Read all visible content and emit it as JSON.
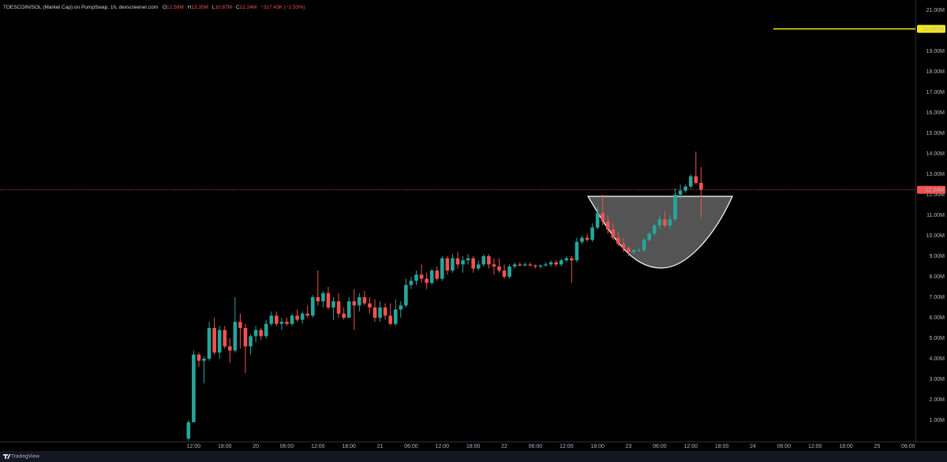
{
  "chart_data": {
    "type": "candlestick",
    "title": "TOESCOIN/SOL (Market Cap) on PumpSwap, 1h, dexscreener.com",
    "ohlc_legend": [
      {
        "key": "O",
        "value": "12.58M"
      },
      {
        "key": "H",
        "value": "13.35M"
      },
      {
        "key": "L",
        "value": "10.87M"
      },
      {
        "key": "C",
        "value": "12.24M"
      }
    ],
    "change": "−317.43K (−2.53%)",
    "watermark": "TradingView",
    "up_color": "#26a69a",
    "down_color": "#ef5350",
    "x": [
      11,
      12,
      13,
      14,
      15,
      16,
      17,
      18,
      19,
      20,
      21,
      22,
      23,
      24,
      25,
      26,
      27,
      28,
      29,
      30,
      31,
      32,
      33,
      34,
      35,
      36,
      37,
      38,
      39,
      40,
      41,
      42,
      43,
      44,
      45,
      46,
      47,
      48,
      49,
      50,
      51,
      52,
      53,
      54,
      55,
      56,
      57,
      58,
      59,
      60,
      61,
      62,
      63,
      64,
      65,
      66,
      67,
      68,
      69,
      70,
      71,
      72,
      73,
      74,
      75,
      76,
      77,
      78,
      79,
      80,
      81,
      82,
      83,
      84,
      85,
      86,
      87,
      88,
      89,
      90,
      91,
      92,
      93,
      94,
      95,
      96,
      97,
      98,
      99,
      100,
      101,
      102,
      103,
      104,
      105,
      106,
      107,
      108,
      109,
      110
    ],
    "open": [
      0.1,
      0.9,
      4.2,
      3.9,
      4.0,
      5.5,
      4.3,
      5.4,
      4.6,
      4.4,
      5.8,
      5.5,
      4.6,
      5.1,
      5.4,
      5.1,
      5.7,
      6.1,
      5.7,
      5.8,
      5.7,
      6.1,
      5.9,
      6.2,
      6.1,
      7.0,
      6.8,
      7.2,
      6.5,
      6.8,
      6.2,
      6.0,
      6.8,
      6.6,
      7.0,
      6.7,
      6.5,
      6.0,
      6.5,
      6.1,
      5.7,
      6.4,
      6.6,
      7.6,
      7.8,
      8.1,
      7.9,
      7.7,
      8.3,
      7.9,
      8.9,
      8.3,
      8.9,
      8.6,
      8.8,
      8.9,
      8.4,
      8.6,
      9.0,
      8.6,
      8.5,
      8.3,
      8.0,
      8.5,
      8.6,
      8.55,
      8.6,
      8.55,
      8.5,
      8.55,
      8.6,
      8.7,
      8.6,
      8.8,
      8.9,
      8.8,
      9.7,
      9.9,
      9.8,
      10.4,
      11.1,
      10.7,
      10.3,
      9.9,
      9.6,
      9.4,
      9.2,
      9.3,
      9.3,
      9.8,
      10.1,
      10.5,
      10.8,
      10.5,
      10.8,
      12.0,
      12.2,
      12.4,
      12.9,
      12.58
    ],
    "high": [
      1.0,
      4.4,
      4.3,
      4.1,
      5.8,
      6.0,
      5.6,
      5.6,
      5.0,
      7.0,
      6.2,
      5.7,
      5.2,
      5.6,
      5.5,
      5.9,
      6.3,
      6.3,
      6.0,
      6.0,
      6.2,
      6.4,
      6.3,
      6.6,
      7.1,
      8.3,
      7.3,
      7.5,
      7.0,
      7.2,
      6.5,
      7.0,
      7.4,
      7.2,
      7.3,
      7.0,
      6.9,
      6.8,
      6.7,
      6.7,
      6.9,
      6.8,
      7.9,
      8.0,
      8.3,
      8.6,
      8.2,
      8.4,
      8.5,
      9.0,
      9.0,
      9.1,
      9.2,
      9.0,
      9.1,
      9.0,
      8.8,
      9.1,
      9.1,
      8.9,
      8.9,
      8.6,
      8.6,
      8.7,
      8.7,
      8.7,
      8.7,
      8.6,
      8.6,
      8.7,
      8.8,
      8.8,
      8.9,
      9.0,
      9.0,
      9.9,
      10.0,
      10.1,
      10.6,
      11.4,
      12.0,
      11.0,
      10.6,
      10.2,
      9.9,
      9.5,
      9.35,
      9.4,
      9.9,
      10.2,
      10.6,
      11.0,
      11.2,
      11.0,
      12.3,
      12.5,
      12.5,
      13.0,
      14.1,
      13.35
    ],
    "low": [
      0.0,
      0.9,
      3.6,
      2.8,
      3.9,
      4.2,
      4.0,
      4.5,
      3.8,
      4.3,
      4.5,
      3.3,
      4.2,
      4.8,
      4.9,
      5.0,
      5.6,
      5.6,
      5.4,
      5.6,
      5.6,
      5.8,
      5.7,
      6.0,
      6.0,
      6.6,
      6.5,
      6.4,
      5.9,
      6.0,
      5.9,
      6.0,
      5.4,
      6.3,
      6.6,
      6.2,
      5.8,
      5.8,
      5.9,
      5.6,
      5.6,
      6.0,
      6.5,
      7.4,
      7.6,
      7.7,
      7.4,
      7.6,
      7.8,
      7.8,
      8.1,
      8.2,
      8.4,
      8.2,
      8.6,
      8.2,
      8.3,
      8.5,
      8.4,
      8.1,
      8.2,
      7.9,
      7.9,
      8.4,
      8.5,
      8.5,
      8.5,
      8.4,
      8.4,
      8.5,
      8.5,
      8.5,
      8.5,
      8.7,
      7.7,
      8.7,
      9.6,
      9.7,
      9.7,
      10.3,
      10.5,
      10.1,
      9.8,
      9.5,
      9.2,
      9.0,
      9.1,
      9.2,
      9.2,
      9.7,
      10.0,
      10.3,
      10.4,
      10.3,
      10.7,
      11.8,
      12.1,
      12.3,
      12.5,
      10.87
    ],
    "close": [
      0.9,
      4.2,
      3.9,
      4.0,
      5.5,
      4.3,
      5.4,
      4.6,
      4.4,
      5.8,
      5.5,
      4.6,
      5.1,
      5.4,
      5.1,
      5.7,
      6.1,
      5.7,
      5.8,
      5.7,
      6.1,
      5.9,
      6.2,
      6.1,
      7.0,
      6.8,
      7.2,
      6.5,
      6.8,
      6.2,
      6.0,
      6.8,
      6.6,
      7.0,
      6.7,
      6.5,
      6.0,
      6.5,
      6.1,
      5.7,
      6.4,
      6.6,
      7.6,
      7.8,
      8.1,
      7.9,
      7.7,
      8.3,
      7.9,
      8.9,
      8.3,
      8.9,
      8.6,
      8.8,
      8.9,
      8.4,
      8.6,
      9.0,
      8.6,
      8.5,
      8.3,
      8.0,
      8.5,
      8.6,
      8.55,
      8.6,
      8.55,
      8.5,
      8.55,
      8.6,
      8.7,
      8.6,
      8.8,
      8.9,
      8.8,
      9.7,
      9.9,
      9.8,
      10.4,
      11.1,
      10.7,
      10.3,
      9.9,
      9.6,
      9.4,
      9.2,
      9.3,
      9.3,
      9.8,
      10.1,
      10.5,
      10.8,
      10.5,
      10.8,
      12.0,
      12.2,
      12.4,
      12.9,
      12.58,
      12.24
    ],
    "price_lines": [
      {
        "value": 20.09,
        "label": "20.090M",
        "color": "#f5e90e"
      },
      {
        "value": 12.24,
        "label": "12.24M",
        "color": "#ef5350"
      }
    ],
    "xlim": [
      -25.4,
      151.4
    ],
    "ylim": [
      -0.04,
      21.5
    ],
    "xticks": [
      {
        "value": 12,
        "label": "12:00"
      },
      {
        "value": 18,
        "label": "18:00"
      },
      {
        "value": 24,
        "label": "20"
      },
      {
        "value": 30,
        "label": "06:00"
      },
      {
        "value": 36,
        "label": "12:00"
      },
      {
        "value": 42,
        "label": "18:00"
      },
      {
        "value": 48,
        "label": "21"
      },
      {
        "value": 54,
        "label": "06:00"
      },
      {
        "value": 60,
        "label": "12:00"
      },
      {
        "value": 66,
        "label": "18:00"
      },
      {
        "value": 72,
        "label": "22"
      },
      {
        "value": 78,
        "label": "06:00"
      },
      {
        "value": 84,
        "label": "12:00"
      },
      {
        "value": 90,
        "label": "18:00"
      },
      {
        "value": 96,
        "label": "23"
      },
      {
        "value": 102,
        "label": "06:00"
      },
      {
        "value": 108,
        "label": "12:00"
      },
      {
        "value": 114,
        "label": "18:00"
      },
      {
        "value": 120,
        "label": "24"
      },
      {
        "value": 126,
        "label": "06:00"
      },
      {
        "value": 132,
        "label": "12:00"
      },
      {
        "value": 138,
        "label": "18:00"
      },
      {
        "value": 144,
        "label": "25"
      },
      {
        "value": 150,
        "label": "06:00"
      }
    ],
    "yticks": [
      {
        "value": 1,
        "label": "1.00M"
      },
      {
        "value": 2,
        "label": "2.00M"
      },
      {
        "value": 3,
        "label": "3.00M"
      },
      {
        "value": 4,
        "label": "4.00M"
      },
      {
        "value": 5,
        "label": "5.00M"
      },
      {
        "value": 6,
        "label": "6.00M"
      },
      {
        "value": 7,
        "label": "7.00M"
      },
      {
        "value": 8,
        "label": "8.00M"
      },
      {
        "value": 9,
        "label": "9.00M"
      },
      {
        "value": 10,
        "label": "10.00M"
      },
      {
        "value": 11,
        "label": "11.00M"
      },
      {
        "value": 12,
        "label": "12.00M"
      },
      {
        "value": 13,
        "label": "13.00M"
      },
      {
        "value": 14,
        "label": "14.00M"
      },
      {
        "value": 15,
        "label": "15.00M"
      },
      {
        "value": 16,
        "label": "16.00M"
      },
      {
        "value": 17,
        "label": "17.00M"
      },
      {
        "value": 18,
        "label": "18.00M"
      },
      {
        "value": 19,
        "label": "19.00M"
      },
      {
        "value": 20,
        "label": "20.00M"
      },
      {
        "value": 21,
        "label": "21.00M"
      }
    ]
  }
}
